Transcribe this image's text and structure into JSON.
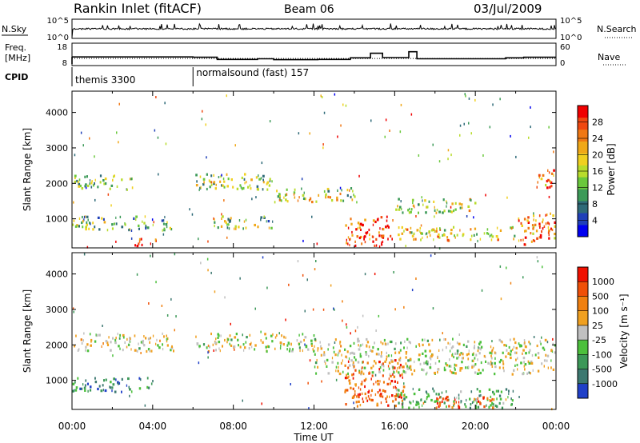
{
  "header": {
    "title": "Rankin Inlet (fitACF)",
    "beam": "Beam 06",
    "date": "03/Jul/2009"
  },
  "strip_panels": {
    "nsky": {
      "left_label": "N.Sky",
      "right_label": "N.Search",
      "left_ticks": [
        "10^5",
        "10^0"
      ],
      "right_ticks": [
        "10^5",
        "10^0"
      ]
    },
    "freq": {
      "left_label": "Freq.",
      "unit": "[MHz]",
      "right_label": "Nave",
      "left_ticks": [
        "18",
        "8"
      ],
      "right_ticks": [
        "60",
        "0"
      ],
      "frequency_mhz": 11,
      "nave_steps": [
        {
          "start": 0,
          "end": 6,
          "nave": 23
        },
        {
          "start": 6,
          "end": 7.2,
          "nave": 22
        },
        {
          "start": 7.2,
          "end": 9.2,
          "nave": 15
        },
        {
          "start": 9.2,
          "end": 10,
          "nave": 17
        },
        {
          "start": 10,
          "end": 12.2,
          "nave": 14
        },
        {
          "start": 12.2,
          "end": 13.8,
          "nave": 15
        },
        {
          "start": 13.8,
          "end": 14.8,
          "nave": 20
        },
        {
          "start": 14.8,
          "end": 15.4,
          "nave": 35
        },
        {
          "start": 15.4,
          "end": 16.7,
          "nave": 21
        },
        {
          "start": 16.7,
          "end": 17.1,
          "nave": 40
        },
        {
          "start": 17.1,
          "end": 21.5,
          "nave": 17
        },
        {
          "start": 21.5,
          "end": 22.4,
          "nave": 20
        },
        {
          "start": 22.4,
          "end": 24,
          "nave": 22
        }
      ]
    },
    "cpid": {
      "label": "CPID",
      "entries": [
        {
          "label": "themis 3300",
          "start": 0
        },
        {
          "label": "normalsound (fast) 157",
          "start": 6
        }
      ]
    }
  },
  "chart_data": [
    {
      "type": "heatmap",
      "parameter": "Power",
      "ylabel": "Slant Range [km]",
      "yticks": [
        1000,
        2000,
        3000,
        4000
      ],
      "ylim": [
        180,
        4600
      ],
      "xlim": [
        0,
        24
      ],
      "colorbar": {
        "label": "Power [dB]",
        "ticks": [
          "4",
          "8",
          "12",
          "16",
          "20",
          "24",
          "28"
        ],
        "colors": [
          "#0000f0",
          "#2040b8",
          "#2e6a78",
          "#3c9a58",
          "#6ac83c",
          "#b8dc2c",
          "#f0d020",
          "#f0a818",
          "#f07814",
          "#f04810",
          "#f00000"
        ]
      },
      "echo_bands": [
        {
          "t0": 0,
          "t1": 3,
          "r0": 1850,
          "r1": 2250,
          "level": 0.45
        },
        {
          "t0": 0,
          "t1": 5,
          "r0": 700,
          "r1": 1100,
          "level": 0.4
        },
        {
          "t0": 3,
          "t1": 4.2,
          "r0": 250,
          "r1": 500,
          "level": 0.85
        },
        {
          "t0": 6,
          "t1": 10,
          "r0": 1850,
          "r1": 2300,
          "level": 0.45
        },
        {
          "t0": 7,
          "t1": 10,
          "r0": 750,
          "r1": 1100,
          "level": 0.45
        },
        {
          "t0": 10,
          "t1": 14,
          "r0": 1500,
          "r1": 1900,
          "level": 0.5
        },
        {
          "t0": 13.5,
          "t1": 16,
          "r0": 250,
          "r1": 1100,
          "level": 0.9
        },
        {
          "t0": 16,
          "t1": 20,
          "r0": 1200,
          "r1": 1600,
          "level": 0.5
        },
        {
          "t0": 16,
          "t1": 22,
          "r0": 400,
          "r1": 800,
          "level": 0.6
        },
        {
          "t0": 22,
          "t1": 24,
          "r0": 300,
          "r1": 1200,
          "level": 0.8
        },
        {
          "t0": 23,
          "t1": 24,
          "r0": 1900,
          "r1": 2400,
          "level": 0.7
        }
      ]
    },
    {
      "type": "heatmap",
      "parameter": "Velocity",
      "ylabel": "Slant Range [km]",
      "yticks": [
        1000,
        2000,
        3000,
        4000
      ],
      "ylim": [
        180,
        4600
      ],
      "xlim": [
        0,
        24
      ],
      "xlabel": "Time UT",
      "xtick_labels": [
        "00:00",
        "04:00",
        "08:00",
        "12:00",
        "16:00",
        "20:00",
        "00:00"
      ],
      "xticks_hours": [
        0,
        4,
        8,
        12,
        16,
        20,
        24
      ],
      "colorbar": {
        "label": "Velocity [m s⁻¹]",
        "ticks": [
          "1000",
          "500",
          "100",
          "25",
          "-25",
          "-100",
          "-500",
          "-1000"
        ],
        "colors": [
          "#2040c8",
          "#3c7870",
          "#3c9858",
          "#4cc03c",
          "#c0c0c0",
          "#f0a020",
          "#f08010",
          "#f05008",
          "#f01000"
        ]
      },
      "echo_bands": [
        {
          "t0": 0,
          "t1": 5,
          "r0": 1850,
          "r1": 2350,
          "level": 0.5
        },
        {
          "t0": 0,
          "t1": 4,
          "r0": 700,
          "r1": 1100,
          "level": 0.2
        },
        {
          "t0": 6,
          "t1": 12,
          "r0": 1850,
          "r1": 2350,
          "level": 0.5
        },
        {
          "t0": 12,
          "t1": 24,
          "r0": 1200,
          "r1": 2200,
          "level": 0.5
        },
        {
          "t0": 13.5,
          "t1": 16.5,
          "r0": 300,
          "r1": 1600,
          "level": 0.8
        },
        {
          "t0": 16,
          "t1": 22,
          "r0": 250,
          "r1": 800,
          "level": 0.3
        },
        {
          "t0": 18,
          "t1": 21,
          "r0": 250,
          "r1": 600,
          "level": 0.8
        }
      ]
    }
  ]
}
